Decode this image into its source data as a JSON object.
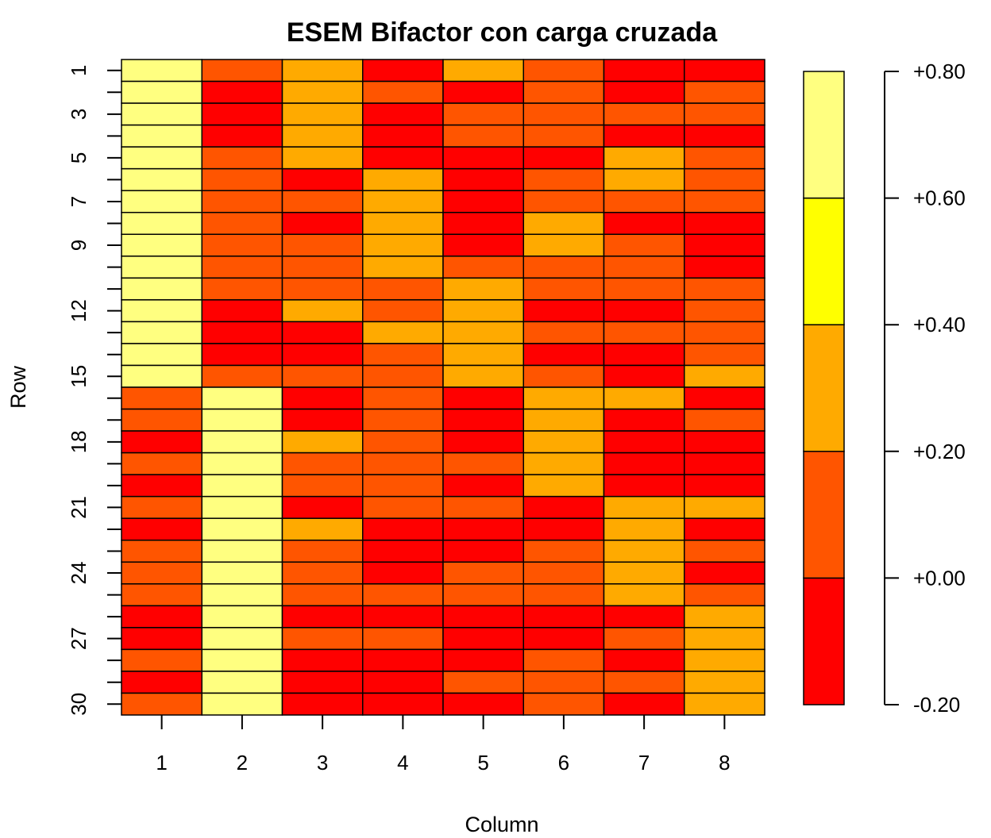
{
  "chart_data": {
    "type": "heatmap",
    "title": "ESEM Bifactor con carga cruzada",
    "xlabel": "Column",
    "ylabel": "Row",
    "columns": [
      "1",
      "2",
      "3",
      "4",
      "5",
      "6",
      "7",
      "8"
    ],
    "row_count": 30,
    "row_tick_labels": [
      "1",
      "3",
      "5",
      "7",
      "9",
      "12",
      "15",
      "18",
      "21",
      "24",
      "27",
      "30"
    ],
    "row_tick_values": [
      1,
      3,
      5,
      7,
      9,
      12,
      15,
      18,
      21,
      24,
      27,
      30
    ],
    "breaks": [
      -0.2,
      0.0,
      0.2,
      0.4,
      0.6,
      0.8
    ],
    "colors": [
      "#FF0000",
      "#FF5500",
      "#FFAA00",
      "#FFFF00",
      "#FFFF80"
    ],
    "legend_labels": [
      "-0.20",
      "+0.00",
      "+0.20",
      "+0.40",
      "+0.60",
      "+0.80"
    ],
    "values": [
      [
        0.7,
        0.1,
        0.3,
        -0.1,
        0.3,
        0.1,
        -0.1,
        -0.1
      ],
      [
        0.7,
        -0.1,
        0.3,
        0.1,
        -0.1,
        0.1,
        -0.1,
        0.1
      ],
      [
        0.7,
        -0.1,
        0.3,
        -0.1,
        0.1,
        0.1,
        0.1,
        0.1
      ],
      [
        0.7,
        -0.1,
        0.3,
        -0.1,
        0.1,
        0.1,
        -0.1,
        -0.1
      ],
      [
        0.7,
        0.1,
        0.3,
        -0.1,
        -0.1,
        -0.1,
        0.3,
        0.1
      ],
      [
        0.7,
        0.1,
        -0.1,
        0.3,
        -0.1,
        0.1,
        0.3,
        0.1
      ],
      [
        0.7,
        0.1,
        0.1,
        0.3,
        -0.1,
        0.1,
        0.1,
        0.1
      ],
      [
        0.7,
        0.1,
        -0.1,
        0.3,
        -0.1,
        0.3,
        -0.1,
        -0.1
      ],
      [
        0.7,
        0.1,
        0.1,
        0.3,
        -0.1,
        0.3,
        0.1,
        -0.1
      ],
      [
        0.7,
        0.1,
        0.1,
        0.3,
        0.1,
        0.1,
        0.1,
        -0.1
      ],
      [
        0.7,
        0.1,
        0.1,
        0.1,
        0.3,
        0.1,
        0.1,
        0.1
      ],
      [
        0.7,
        -0.1,
        0.3,
        0.1,
        0.3,
        -0.1,
        -0.1,
        0.1
      ],
      [
        0.7,
        -0.1,
        -0.1,
        0.3,
        0.3,
        0.1,
        0.1,
        0.1
      ],
      [
        0.7,
        -0.1,
        -0.1,
        0.1,
        0.3,
        -0.1,
        -0.1,
        0.1
      ],
      [
        0.7,
        0.1,
        0.1,
        0.1,
        0.3,
        0.1,
        -0.1,
        0.3
      ],
      [
        0.1,
        0.7,
        -0.1,
        0.1,
        -0.1,
        0.3,
        0.3,
        -0.1
      ],
      [
        0.1,
        0.7,
        -0.1,
        0.1,
        -0.1,
        0.3,
        -0.1,
        0.1
      ],
      [
        -0.1,
        0.7,
        0.3,
        0.1,
        -0.1,
        0.3,
        -0.1,
        -0.1
      ],
      [
        0.1,
        0.7,
        0.1,
        0.1,
        0.1,
        0.3,
        -0.1,
        -0.1
      ],
      [
        -0.1,
        0.7,
        0.1,
        0.1,
        -0.1,
        0.3,
        -0.1,
        -0.1
      ],
      [
        0.1,
        0.7,
        -0.1,
        0.1,
        0.1,
        -0.1,
        0.3,
        0.3
      ],
      [
        -0.1,
        0.7,
        0.3,
        -0.1,
        -0.1,
        -0.1,
        0.3,
        -0.1
      ],
      [
        0.1,
        0.7,
        0.1,
        -0.1,
        -0.1,
        0.1,
        0.3,
        0.1
      ],
      [
        0.1,
        0.7,
        0.1,
        -0.1,
        0.1,
        0.1,
        0.3,
        -0.1
      ],
      [
        0.1,
        0.7,
        0.1,
        0.1,
        0.1,
        0.1,
        0.3,
        0.1
      ],
      [
        -0.1,
        0.7,
        -0.1,
        -0.1,
        -0.1,
        -0.1,
        -0.1,
        0.3
      ],
      [
        -0.1,
        0.7,
        0.1,
        0.1,
        -0.1,
        -0.1,
        0.1,
        0.3
      ],
      [
        0.1,
        0.7,
        -0.1,
        -0.1,
        -0.1,
        0.1,
        -0.1,
        0.3
      ],
      [
        -0.1,
        0.7,
        -0.1,
        -0.1,
        0.1,
        0.1,
        0.1,
        0.3
      ],
      [
        0.1,
        0.7,
        -0.1,
        -0.1,
        -0.1,
        0.1,
        -0.1,
        0.3
      ]
    ]
  }
}
